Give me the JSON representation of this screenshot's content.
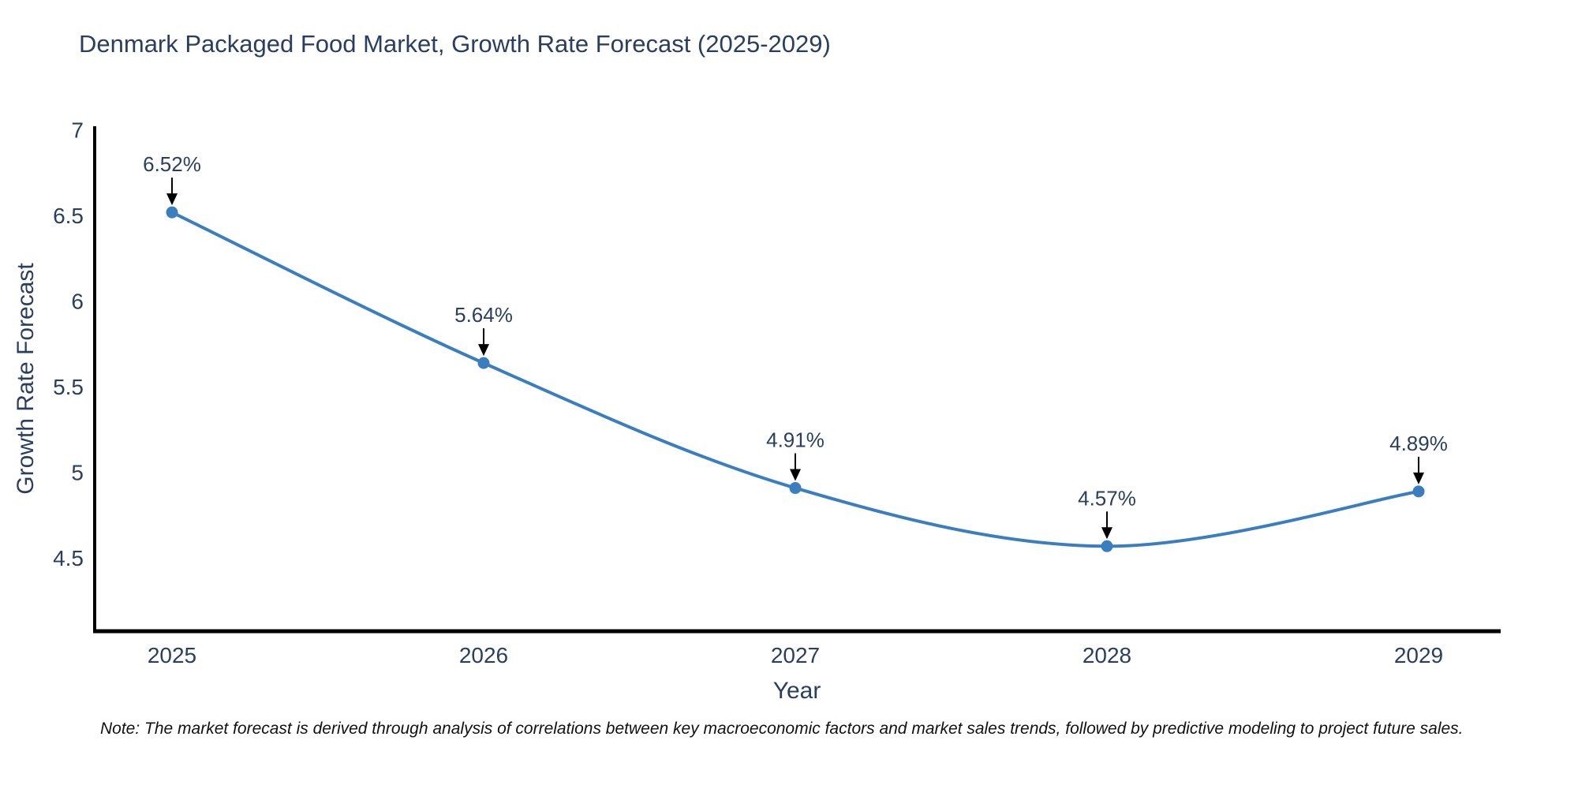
{
  "chart_data": {
    "type": "line",
    "title": "Denmark Packaged Food Market, Growth Rate Forecast (2025-2029)",
    "xlabel": "Year",
    "ylabel": "Growth Rate Forecast",
    "x": [
      2025,
      2026,
      2027,
      2028,
      2029
    ],
    "series": [
      {
        "name": "Growth Rate Forecast",
        "values": [
          6.52,
          5.64,
          4.91,
          4.57,
          4.89
        ],
        "point_labels": [
          "6.52%",
          "5.64%",
          "4.91%",
          "4.57%",
          "4.89%"
        ]
      }
    ],
    "y_ticks": [
      "7",
      "6.5",
      "6",
      "5.5",
      "5",
      "4.5"
    ],
    "y_tick_values": [
      7,
      6.5,
      6,
      5.5,
      5,
      4.5
    ],
    "ylim": [
      4.07,
      7.02
    ],
    "line_shape": "spline",
    "grid": false,
    "legend_position": "none",
    "line_color": "#3b7ec0",
    "marker_color": "#3b7ec0",
    "axis_color": "#000000",
    "text_color": "#2a3f5f",
    "annotation_color": "#000000"
  },
  "note": {
    "text": "Note: The market forecast is derived through analysis of correlations between key macroeconomic factors and market sales trends, followed by predictive modeling to project future sales."
  }
}
